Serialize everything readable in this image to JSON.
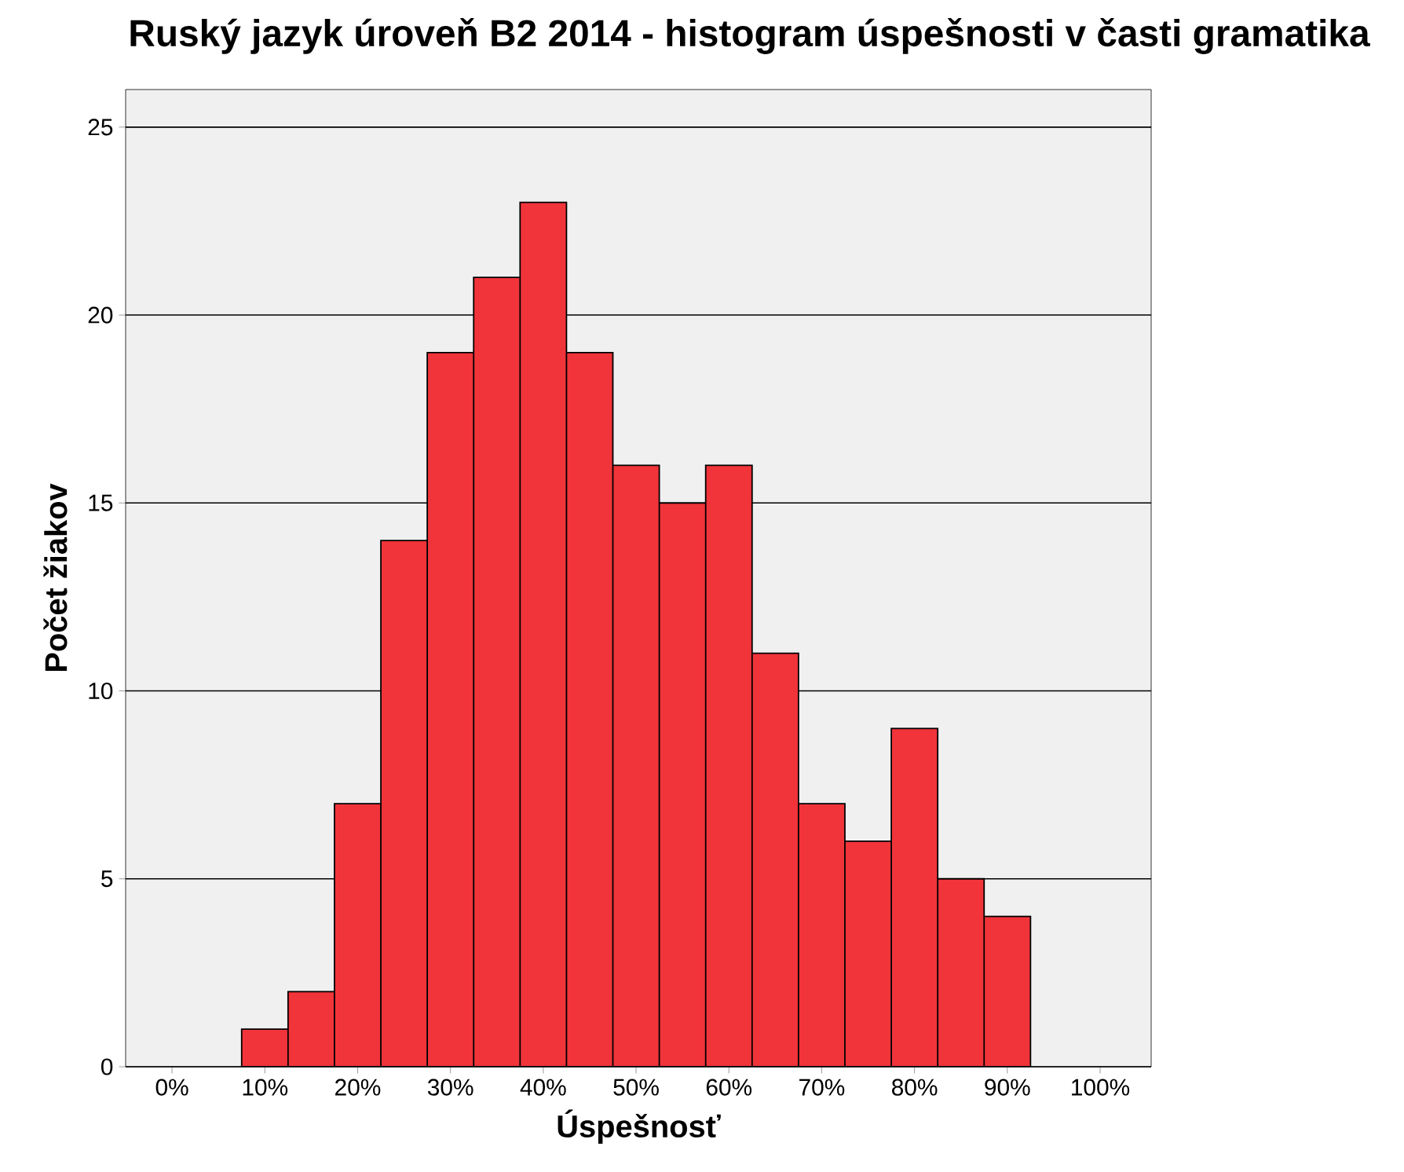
{
  "chart_data": {
    "type": "histogram",
    "title": "Ruský jazyk úroveň B2 2014 - histogram úspešnosti v časti gramatika",
    "xlabel": "Úspešnosť",
    "ylabel": "Počet žiakov",
    "bins": [
      7.5,
      12.5,
      17.5,
      22.5,
      27.5,
      32.5,
      37.5,
      42.5,
      47.5,
      52.5,
      57.5,
      62.5,
      67.5,
      72.5,
      77.5,
      82.5,
      87.5,
      92.5
    ],
    "values": [
      1,
      2,
      7,
      14,
      19,
      21,
      23,
      19,
      16,
      15,
      16,
      11,
      7,
      6,
      9,
      5,
      4
    ],
    "color": "#f0343a",
    "xlim": [
      -5,
      105.5
    ],
    "xticks": [
      {
        "value": 0,
        "label": "0%"
      },
      {
        "value": 10,
        "label": "10%"
      },
      {
        "value": 20,
        "label": "20%"
      },
      {
        "value": 30,
        "label": "30%"
      },
      {
        "value": 40,
        "label": "40%"
      },
      {
        "value": 50,
        "label": "50%"
      },
      {
        "value": 60,
        "label": "60%"
      },
      {
        "value": 70,
        "label": "70%"
      },
      {
        "value": 80,
        "label": "80%"
      },
      {
        "value": 90,
        "label": "90%"
      },
      {
        "value": 100,
        "label": "100%"
      }
    ],
    "ylim": [
      0,
      26
    ],
    "yticks": [
      0,
      5,
      10,
      15,
      20,
      25
    ],
    "grid": "y"
  }
}
